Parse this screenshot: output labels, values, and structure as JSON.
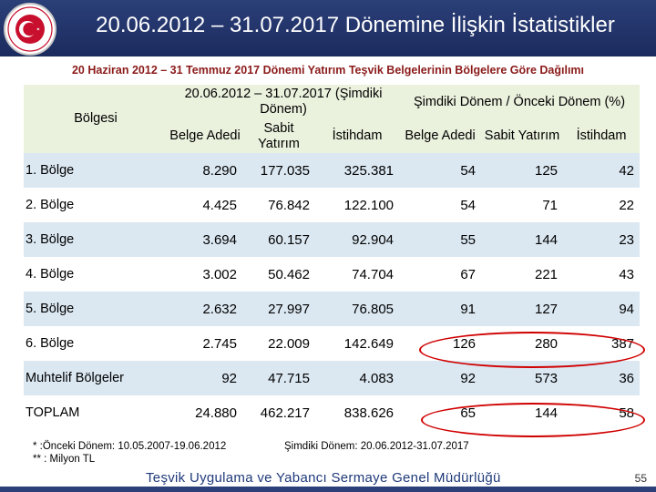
{
  "header": {
    "title": "20.06.2012 – 31.07.2017 Dönemine İlişkin İstatistikler"
  },
  "subtitle": "20 Haziran 2012 – 31 Temmuz 2017 Dönemi Yatırım Teşvik Belgelerinin Bölgelere Göre Dağılımı",
  "table": {
    "region_header": "Bölgesi",
    "group1_header": "20.06.2012 – 31.07.2017 (Şimdiki Dönem)",
    "group2_header": "Şimdiki Dönem / Önceki Dönem (%)",
    "col_belge": "Belge Adedi",
    "col_sabit": "Sabit Yatırım",
    "col_istihdam": "İstihdam",
    "rows": [
      {
        "region": "1. Bölge",
        "belge": "8.290",
        "sabit": "177.035",
        "istihdam": "325.381",
        "p_belge": "54",
        "p_sabit": "125",
        "p_istihdam": "42"
      },
      {
        "region": "2. Bölge",
        "belge": "4.425",
        "sabit": "76.842",
        "istihdam": "122.100",
        "p_belge": "54",
        "p_sabit": "71",
        "p_istihdam": "22"
      },
      {
        "region": "3. Bölge",
        "belge": "3.694",
        "sabit": "60.157",
        "istihdam": "92.904",
        "p_belge": "55",
        "p_sabit": "144",
        "p_istihdam": "23"
      },
      {
        "region": "4. Bölge",
        "belge": "3.002",
        "sabit": "50.462",
        "istihdam": "74.704",
        "p_belge": "67",
        "p_sabit": "221",
        "p_istihdam": "43"
      },
      {
        "region": "5. Bölge",
        "belge": "2.632",
        "sabit": "27.997",
        "istihdam": "76.805",
        "p_belge": "91",
        "p_sabit": "127",
        "p_istihdam": "94"
      },
      {
        "region": "6. Bölge",
        "belge": "2.745",
        "sabit": "22.009",
        "istihdam": "142.649",
        "p_belge": "126",
        "p_sabit": "280",
        "p_istihdam": "387"
      },
      {
        "region": "Muhtelif Bölgeler",
        "belge": "92",
        "sabit": "47.715",
        "istihdam": "4.083",
        "p_belge": "92",
        "p_sabit": "573",
        "p_istihdam": "36"
      },
      {
        "region": "TOPLAM",
        "belge": "24.880",
        "sabit": "462.217",
        "istihdam": "838.626",
        "p_belge": "65",
        "p_sabit": "144",
        "p_istihdam": "58"
      }
    ]
  },
  "footnotes": {
    "note1": "*   :Önceki Dönem: 10.05.2007-19.06.2012",
    "note2": "**  : Milyon TL",
    "note3": "Şimdiki Dönem: 20.06.2012-31.07.2017"
  },
  "footer": {
    "title": "Teşvik Uygulama ve Yabancı Sermaye Genel Müdürlüğü",
    "page": "55"
  },
  "colors": {
    "header_bg": "#2b3f78",
    "subtitle": "#8b1a1a",
    "row_shade": "#dbe8f2",
    "header_cell_bg": "#eaf1dd",
    "highlight": "#d00000",
    "logo_red": "#c8102e"
  },
  "icons": {
    "logo": "ministry-seal-crescent-star-logo"
  }
}
